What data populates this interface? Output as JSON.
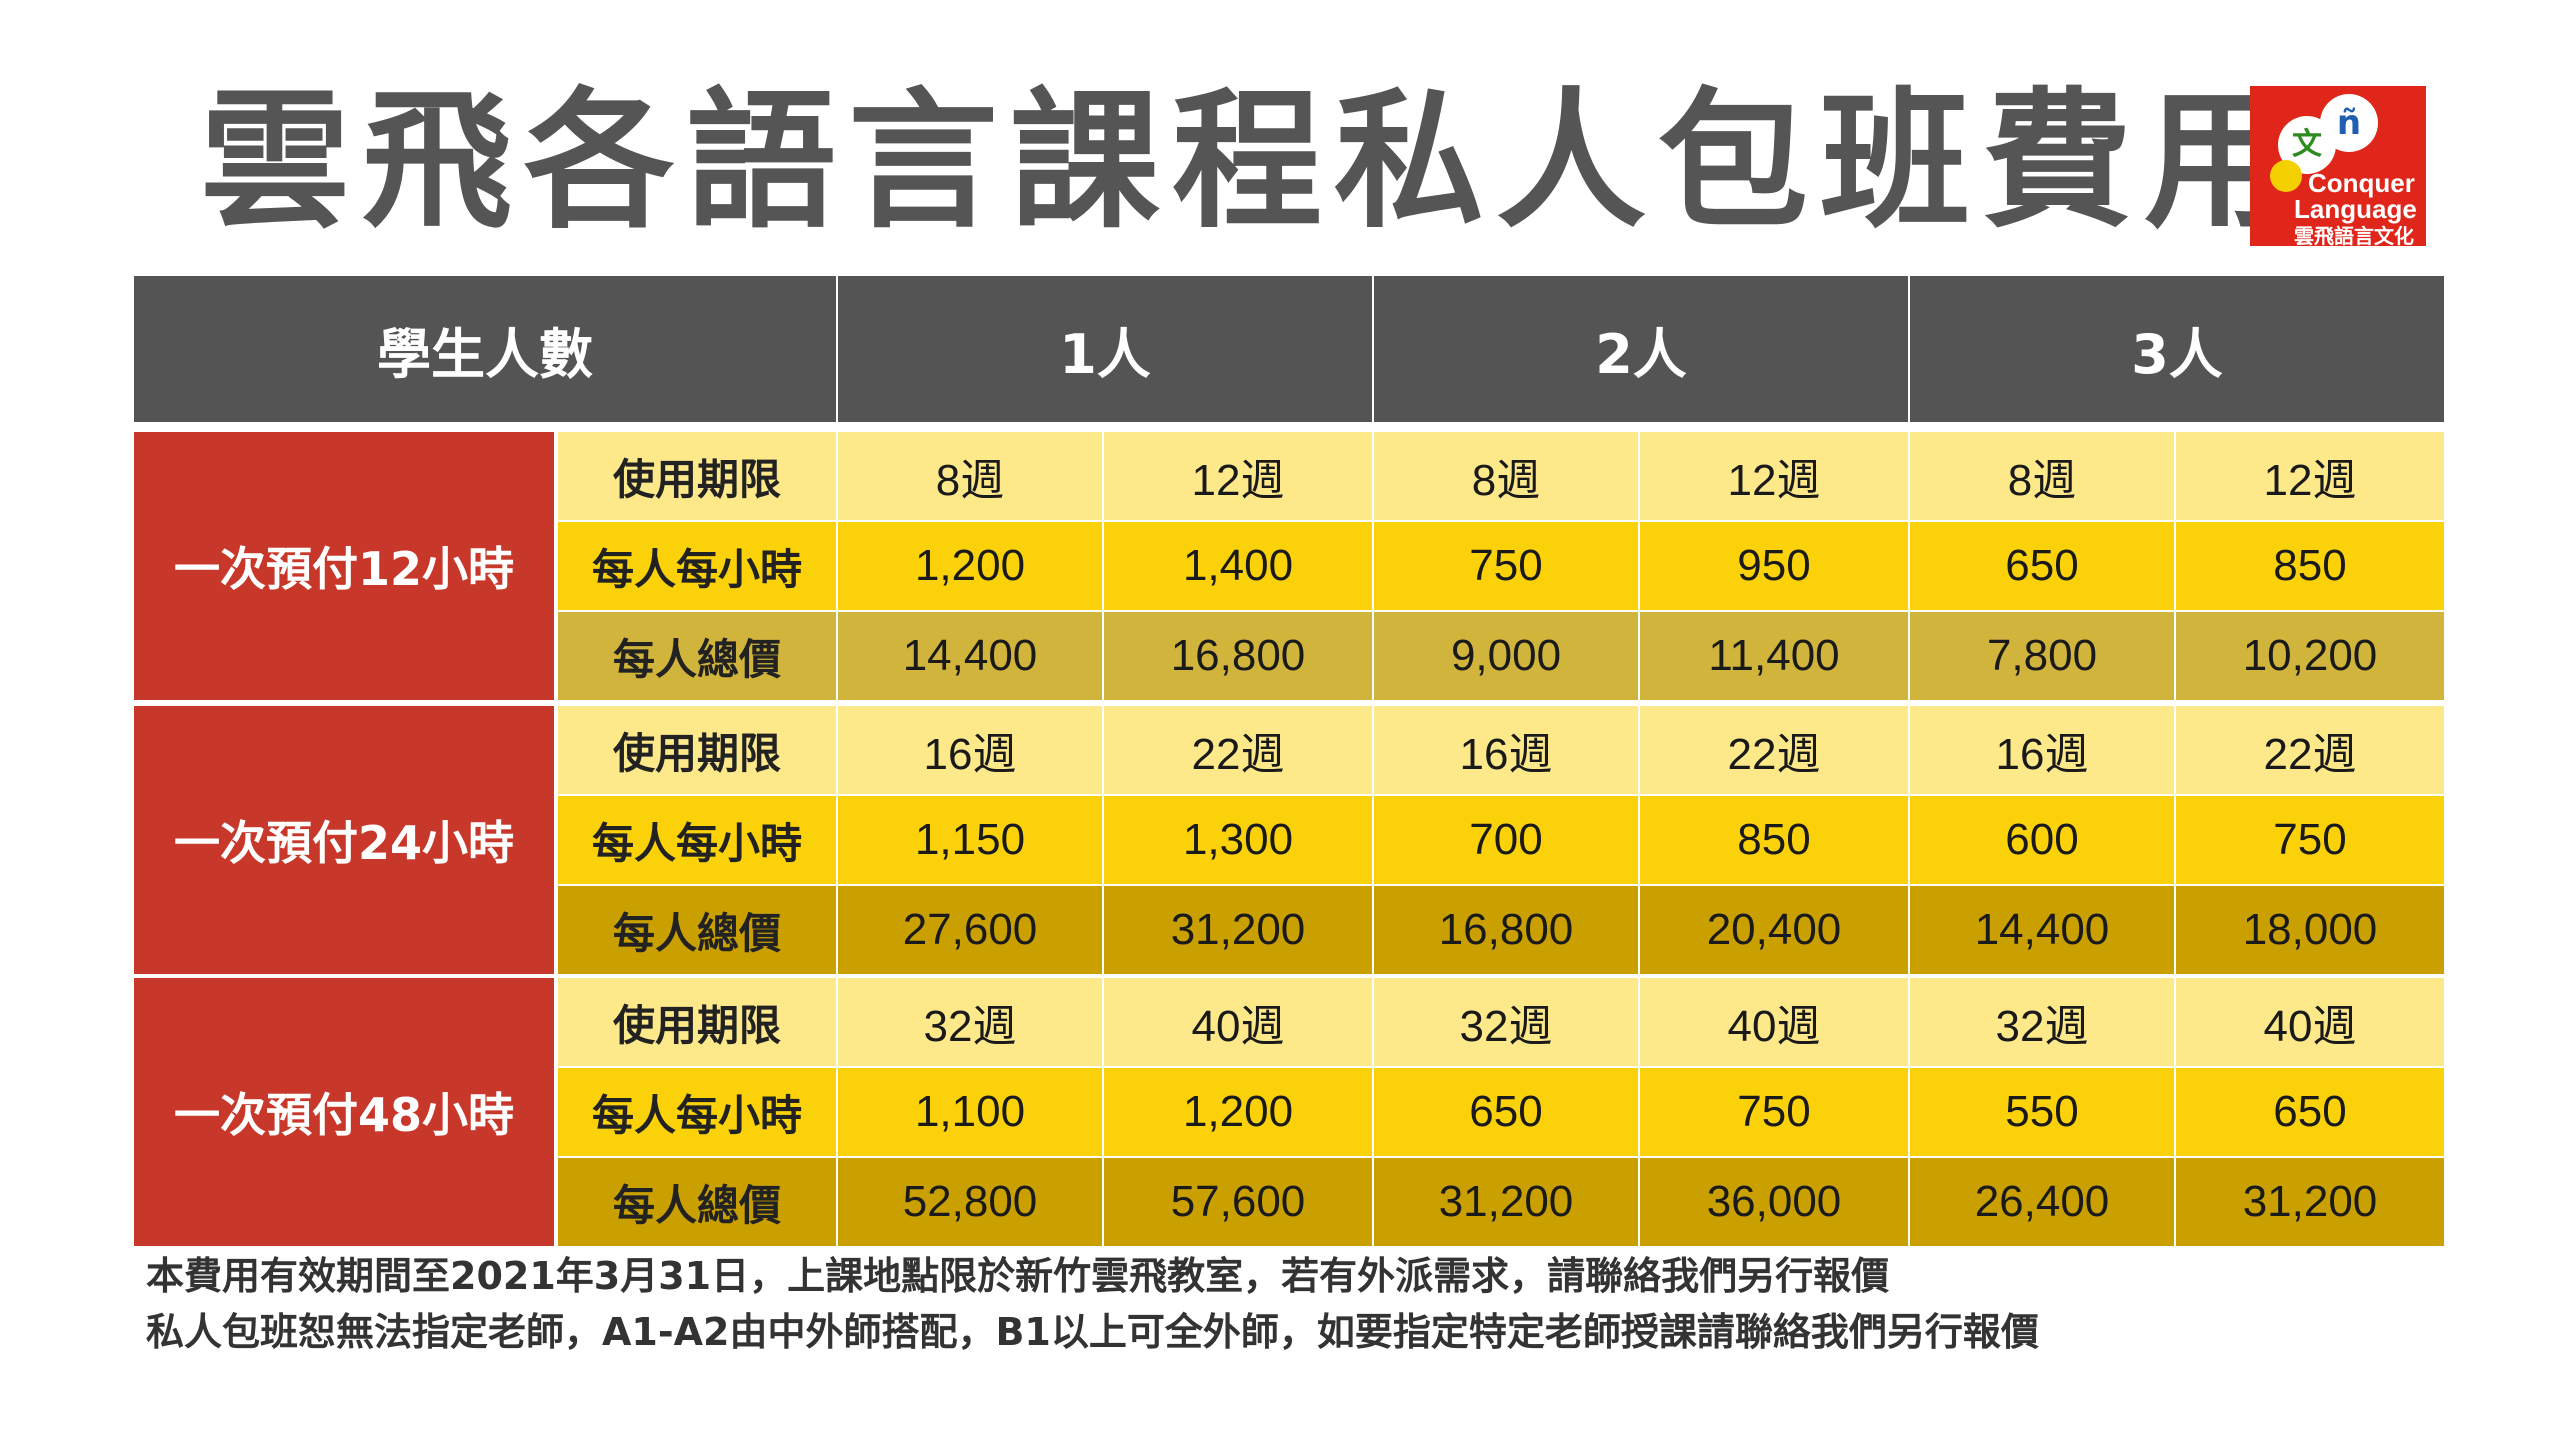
{
  "title": "雲飛各語言課程私人包班費用",
  "logo": {
    "bubble_a": "文",
    "bubble_b": "ñ",
    "line1": "Conquer",
    "line2": "Language",
    "line3": "雲飛語言文化"
  },
  "table": {
    "header": {
      "label": "學生人數",
      "columns": [
        "1人",
        "2人",
        "3人"
      ]
    },
    "row_labels": [
      "使用期限",
      "每人每小時",
      "每人總價"
    ],
    "groups": [
      {
        "label": "一次預付12小時",
        "duration": [
          "8週",
          "12週",
          "8週",
          "12週",
          "8週",
          "12週"
        ],
        "hourly": [
          "1,200",
          "1,400",
          "750",
          "950",
          "650",
          "850"
        ],
        "total": [
          "14,400",
          "16,800",
          "9,000",
          "11,400",
          "7,800",
          "10,200"
        ]
      },
      {
        "label": "一次預付24小時",
        "duration": [
          "16週",
          "22週",
          "16週",
          "22週",
          "16週",
          "22週"
        ],
        "hourly": [
          "1,150",
          "1,300",
          "700",
          "850",
          "600",
          "750"
        ],
        "total": [
          "27,600",
          "31,200",
          "16,800",
          "20,400",
          "14,400",
          "18,000"
        ]
      },
      {
        "label": "一次預付48小時",
        "duration": [
          "32週",
          "40週",
          "32週",
          "40週",
          "32週",
          "40週"
        ],
        "hourly": [
          "1,100",
          "1,200",
          "650",
          "750",
          "550",
          "650"
        ],
        "total": [
          "52,800",
          "57,600",
          "31,200",
          "36,000",
          "26,400",
          "31,200"
        ]
      }
    ]
  },
  "notes": [
    "本費用有效期間至2021年3月31日，上課地點限於新竹雲飛教室，若有外派需求，請聯絡我們另行報價",
    "私人包班恕無法指定老師，A1-A2由中外師搭配，B1以上可全外師，如要指定特定老師授課請聯絡我們另行報價"
  ]
}
